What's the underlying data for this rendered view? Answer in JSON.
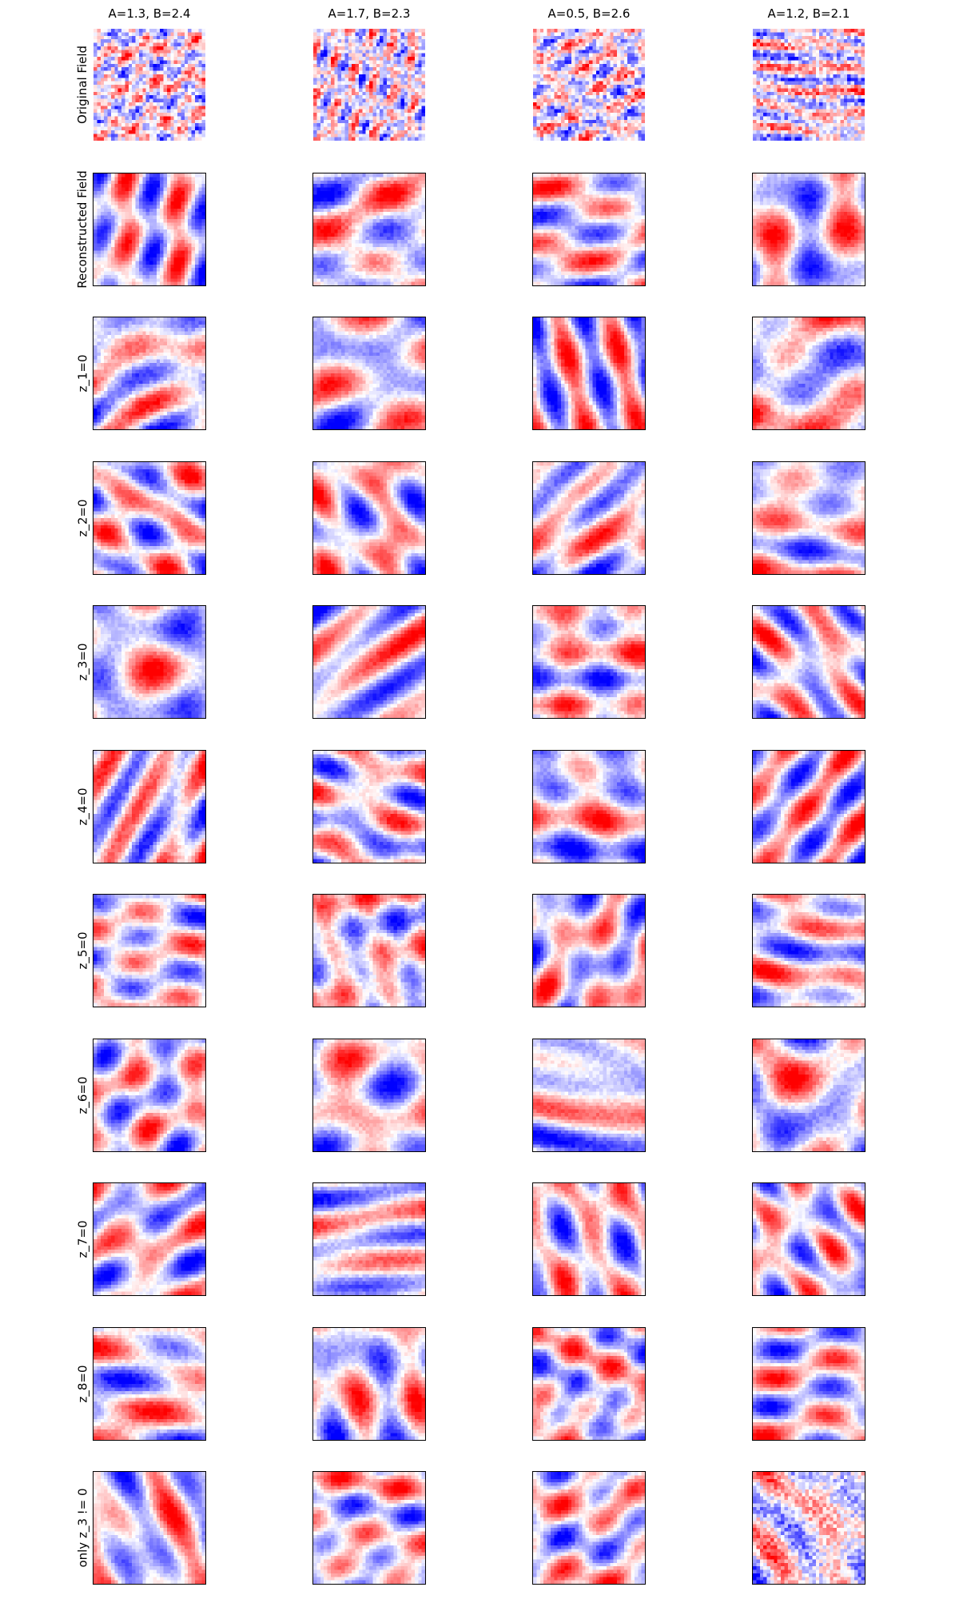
{
  "chart_data": {
    "type": "heatmap",
    "layout": "grid",
    "columns": [
      {
        "title": "A=1.3, B=2.4",
        "A": 1.3,
        "B": 2.4
      },
      {
        "title": "A=1.7, B=2.3",
        "A": 1.7,
        "B": 2.3
      },
      {
        "title": "A=0.5, B=2.6",
        "A": 0.5,
        "B": 2.6
      },
      {
        "title": "A=1.2, B=2.1",
        "A": 1.2,
        "B": 2.1
      }
    ],
    "rows": [
      {
        "label": "Original Field",
        "framed": false
      },
      {
        "label": "Reconstructed Field",
        "framed": true
      },
      {
        "label": "z_1=0",
        "framed": true
      },
      {
        "label": "z_2=0",
        "framed": true
      },
      {
        "label": "z_3=0",
        "framed": true
      },
      {
        "label": "z_4=0",
        "framed": true
      },
      {
        "label": "z_5=0",
        "framed": true
      },
      {
        "label": "z_6=0",
        "framed": true
      },
      {
        "label": "z_7=0",
        "framed": true
      },
      {
        "label": "z_8=0",
        "framed": true
      },
      {
        "label": "only z_3 != 0",
        "framed": true
      }
    ],
    "colormap": {
      "name": "bwr",
      "low": "#0000ff",
      "mid": "#ffffff",
      "high": "#ff0000"
    },
    "grid_resolution": 32,
    "axes_ticks": false,
    "colorbar": false
  }
}
